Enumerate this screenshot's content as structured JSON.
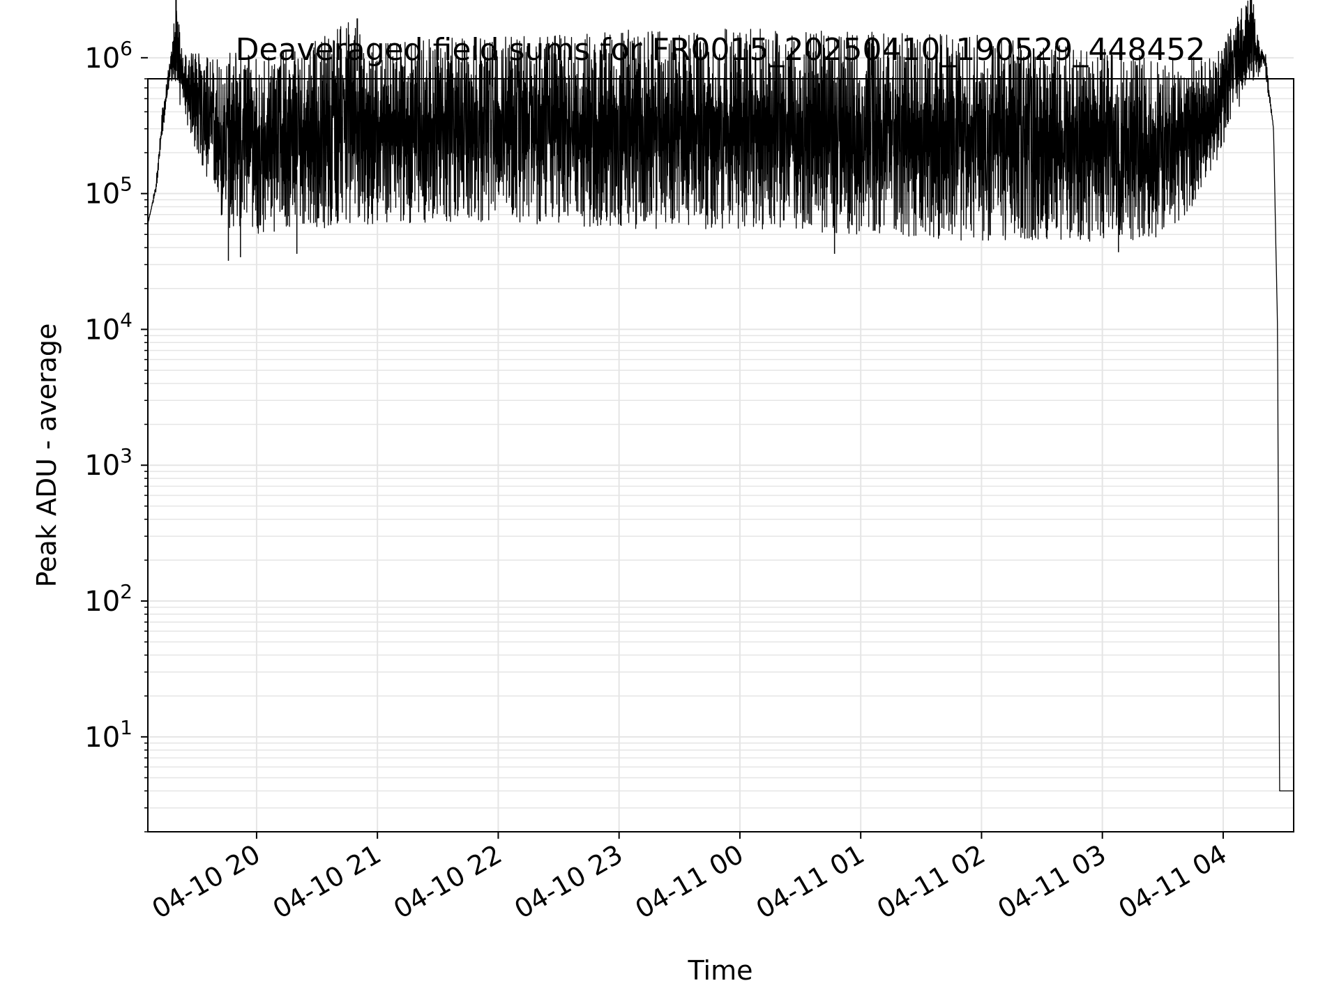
{
  "chart_data": {
    "type": "line",
    "title": "Deaveraged field sums for FR0015_20250410_190529_448452",
    "xlabel": "Time",
    "ylabel": "Peak ADU - average",
    "x_scale": "time",
    "y_scale": "log",
    "xlim": [
      "2025-04-10 19:06",
      "2025-04-11 04:35"
    ],
    "ylim": [
      2,
      700000
    ],
    "grid": true,
    "legend": "none",
    "line_color": "#000000",
    "grid_color": "#e5e5e5",
    "x_ticks": [
      {
        "t": "2025-04-10 20:00",
        "label": "04-10 20"
      },
      {
        "t": "2025-04-10 21:00",
        "label": "04-10 21"
      },
      {
        "t": "2025-04-10 22:00",
        "label": "04-10 22"
      },
      {
        "t": "2025-04-10 23:00",
        "label": "04-10 23"
      },
      {
        "t": "2025-04-11 00:00",
        "label": "04-11 00"
      },
      {
        "t": "2025-04-11 01:00",
        "label": "04-11 01"
      },
      {
        "t": "2025-04-11 02:00",
        "label": "04-11 02"
      },
      {
        "t": "2025-04-11 03:00",
        "label": "04-11 03"
      },
      {
        "t": "2025-04-11 04:00",
        "label": "04-11 04"
      }
    ],
    "y_ticks": [
      {
        "v": 10,
        "base": "10",
        "exp": "1"
      },
      {
        "v": 100,
        "base": "10",
        "exp": "2"
      },
      {
        "v": 1000,
        "base": "10",
        "exp": "3"
      },
      {
        "v": 10000,
        "base": "10",
        "exp": "4"
      },
      {
        "v": 100000,
        "base": "10",
        "exp": "5"
      },
      {
        "v": 1000000,
        "base": "10",
        "exp": "6"
      }
    ],
    "series": [
      {
        "envelope": {
          "upper": [
            [
              "2025-04-10 19:06",
              60000
            ],
            [
              "2025-04-10 19:10",
              120000
            ],
            [
              "2025-04-10 19:13",
              400000
            ],
            [
              "2025-04-10 19:17",
              1000000
            ],
            [
              "2025-04-10 19:20",
              3000000
            ],
            [
              "2025-04-10 19:23",
              1100000
            ],
            [
              "2025-04-10 19:40",
              1050000
            ],
            [
              "2025-04-10 20:00",
              1150000
            ],
            [
              "2025-04-10 20:20",
              1200000
            ],
            [
              "2025-04-10 20:50",
              1950000
            ],
            [
              "2025-04-10 20:52",
              1300000
            ],
            [
              "2025-04-10 21:30",
              1400000
            ],
            [
              "2025-04-10 22:00",
              1450000
            ],
            [
              "2025-04-10 23:00",
              1600000
            ],
            [
              "2025-04-11 00:00",
              1650000
            ],
            [
              "2025-04-11 01:00",
              1550000
            ],
            [
              "2025-04-11 02:00",
              1500000
            ],
            [
              "2025-04-11 02:30",
              1250000
            ],
            [
              "2025-04-11 03:00",
              1200000
            ],
            [
              "2025-04-11 03:30",
              1050000
            ],
            [
              "2025-04-11 03:55",
              1000000
            ],
            [
              "2025-04-11 04:14",
              3300000
            ],
            [
              "2025-04-11 04:18",
              1250000
            ],
            [
              "2025-04-11 04:21",
              1100000
            ],
            [
              "2025-04-11 04:25",
              300000
            ],
            [
              "2025-04-11 04:27",
              10000
            ],
            [
              "2025-04-11 04:28",
              4
            ],
            [
              "2025-04-11 04:35",
              4
            ]
          ],
          "lower": [
            [
              "2025-04-10 19:06",
              60000
            ],
            [
              "2025-04-10 19:10",
              100000
            ],
            [
              "2025-04-10 19:13",
              250000
            ],
            [
              "2025-04-10 19:17",
              700000
            ],
            [
              "2025-04-10 19:23",
              400000
            ],
            [
              "2025-04-10 19:30",
              200000
            ],
            [
              "2025-04-10 19:40",
              80000
            ],
            [
              "2025-04-10 19:50",
              45000
            ],
            [
              "2025-04-10 20:00",
              50000
            ],
            [
              "2025-04-10 21:00",
              60000
            ],
            [
              "2025-04-10 22:00",
              60000
            ],
            [
              "2025-04-10 23:00",
              55000
            ],
            [
              "2025-04-11 00:00",
              55000
            ],
            [
              "2025-04-11 01:00",
              50000
            ],
            [
              "2025-04-11 01:50",
              45000
            ],
            [
              "2025-04-11 02:30",
              45000
            ],
            [
              "2025-04-11 03:00",
              43000
            ],
            [
              "2025-04-11 03:30",
              45000
            ],
            [
              "2025-04-11 03:45",
              80000
            ],
            [
              "2025-04-11 03:55",
              150000
            ],
            [
              "2025-04-11 04:05",
              350000
            ],
            [
              "2025-04-11 04:14",
              500000
            ],
            [
              "2025-04-11 04:20",
              900000
            ],
            [
              "2025-04-11 04:25",
              300000
            ],
            [
              "2025-04-11 04:27",
              10000
            ],
            [
              "2025-04-11 04:28",
              4
            ],
            [
              "2025-04-11 04:35",
              4
            ]
          ]
        },
        "spikes": [
          [
            "2025-04-10 19:20",
            3000000
          ],
          [
            "2025-04-10 20:50",
            1950000
          ],
          [
            "2025-04-11 04:14",
            3300000
          ]
        ],
        "dips": [
          [
            "2025-04-10 19:46",
            32000
          ],
          [
            "2025-04-10 19:52",
            34000
          ],
          [
            "2025-04-10 20:20",
            36000
          ],
          [
            "2025-04-11 00:47",
            36000
          ],
          [
            "2025-04-11 03:08",
            37000
          ]
        ]
      }
    ]
  }
}
